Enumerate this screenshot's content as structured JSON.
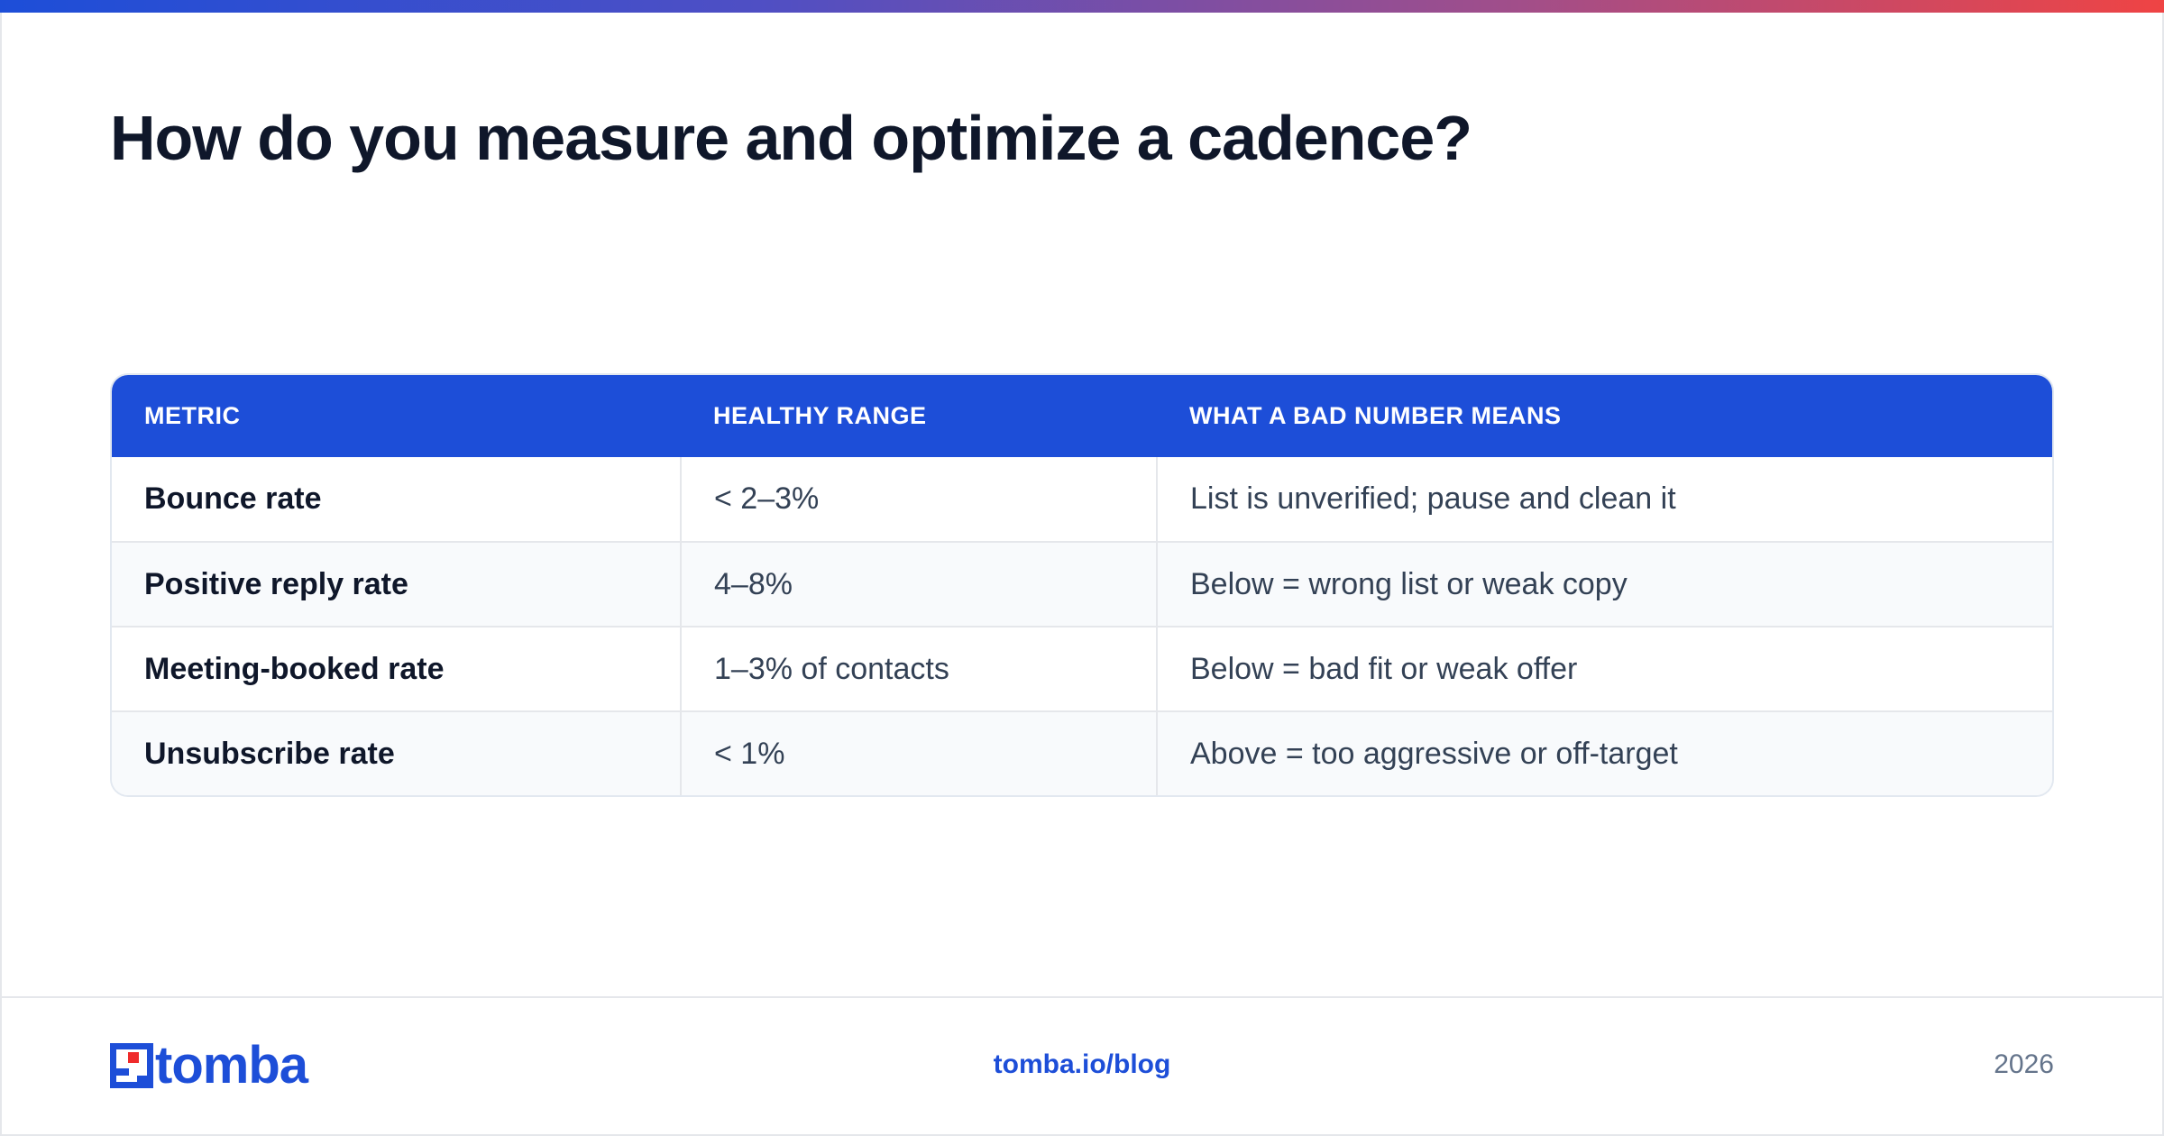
{
  "header": {
    "title": "How do you measure and optimize a cadence?"
  },
  "table": {
    "columns": [
      "METRIC",
      "HEALTHY RANGE",
      "WHAT A BAD NUMBER MEANS"
    ],
    "rows": [
      [
        "Bounce rate",
        "< 2–3%",
        "List is unverified; pause and clean it"
      ],
      [
        "Positive reply rate",
        "4–8%",
        "Below = wrong list or weak copy"
      ],
      [
        "Meeting-booked rate",
        "1–3% of contacts",
        "Below = bad fit or weak offer"
      ],
      [
        "Unsubscribe rate",
        "< 1%",
        "Above = too aggressive or off-target"
      ]
    ]
  },
  "footer": {
    "logo_text": "tomba",
    "link": "tomba.io/blog",
    "year": "2026"
  },
  "colors": {
    "accent": "#1d4ed8",
    "logo_red": "#ef2b2b",
    "gradient_start": "#1d4ed8",
    "gradient_end": "#ef4444"
  }
}
